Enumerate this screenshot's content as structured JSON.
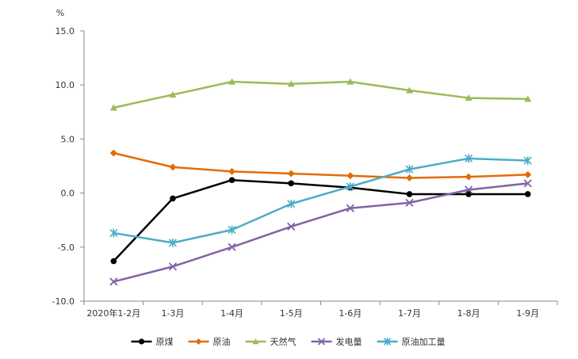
{
  "chart_data": {
    "type": "line",
    "unit": "%",
    "categories": [
      "2020年1-2月",
      "1-3月",
      "1-4月",
      "1-5月",
      "1-6月",
      "1-7月",
      "1-8月",
      "1-9月"
    ],
    "y_ticks": [
      "15.0",
      "10.0",
      "5.0",
      "0.0",
      "-5.0",
      "-10.0"
    ],
    "ylim": [
      -10,
      15
    ],
    "grid": false,
    "legend_position": "bottom",
    "series": [
      {
        "name": "原煤",
        "color": "#000000",
        "marker": "circle",
        "values": [
          -6.3,
          -0.5,
          1.2,
          0.9,
          0.5,
          -0.1,
          -0.1,
          -0.1
        ]
      },
      {
        "name": "原油",
        "color": "#e36c09",
        "marker": "diamond",
        "values": [
          3.7,
          2.4,
          2.0,
          1.8,
          1.6,
          1.4,
          1.5,
          1.7
        ]
      },
      {
        "name": "天然气",
        "color": "#9bbb59",
        "marker": "triangle",
        "values": [
          7.9,
          9.1,
          10.3,
          10.1,
          10.3,
          9.5,
          8.8,
          8.7
        ]
      },
      {
        "name": "发电量",
        "color": "#8064a2",
        "marker": "x",
        "values": [
          -8.2,
          -6.8,
          -5.0,
          -3.1,
          -1.4,
          -0.9,
          0.3,
          0.9
        ]
      },
      {
        "name": "原油加工量",
        "color": "#4bacc6",
        "marker": "star",
        "values": [
          -3.7,
          -4.6,
          -3.4,
          -1.0,
          0.6,
          2.2,
          3.2,
          3.0
        ]
      }
    ]
  }
}
